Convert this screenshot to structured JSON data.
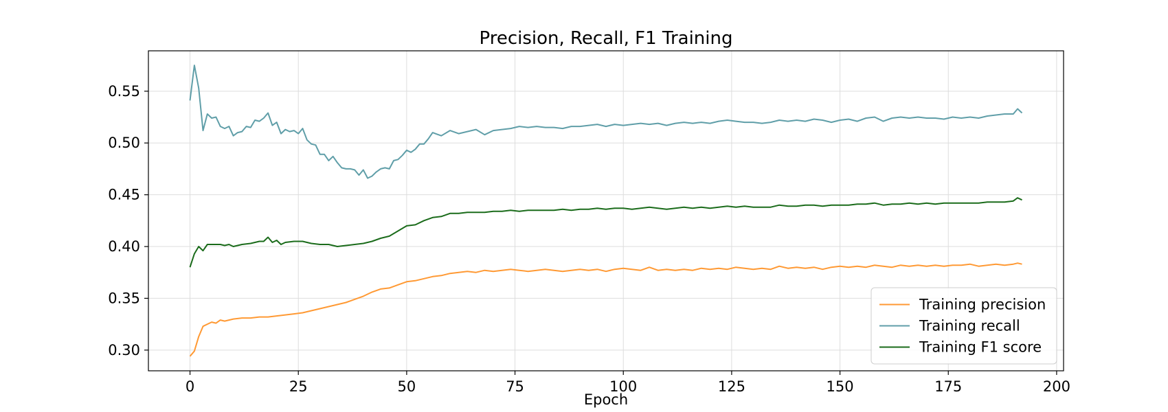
{
  "chart_data": {
    "type": "line",
    "title": "Precision, Recall, F1 Training",
    "xlabel": "Epoch",
    "ylabel": "",
    "xlim": [
      -9.6,
      201.6
    ],
    "ylim": [
      0.28,
      0.589
    ],
    "xticks": [
      0,
      25,
      50,
      75,
      100,
      125,
      150,
      175,
      200
    ],
    "yticks": [
      0.3,
      0.35,
      0.4,
      0.45,
      0.5,
      0.55
    ],
    "xtick_labels": [
      "0",
      "25",
      "50",
      "75",
      "100",
      "125",
      "150",
      "175",
      "200"
    ],
    "ytick_labels": [
      "0.30",
      "0.35",
      "0.40",
      "0.45",
      "0.50",
      "0.55"
    ],
    "grid": true,
    "legend": "lower-right",
    "series": [
      {
        "name": "Training precision",
        "color": "#ff9933",
        "x": [
          0,
          1,
          2,
          3,
          4,
          5,
          6,
          7,
          8,
          9,
          10,
          12,
          14,
          16,
          18,
          20,
          22,
          24,
          26,
          28,
          30,
          32,
          34,
          36,
          38,
          40,
          42,
          44,
          46,
          48,
          50,
          52,
          54,
          56,
          58,
          60,
          62,
          64,
          66,
          68,
          70,
          72,
          74,
          76,
          78,
          80,
          82,
          84,
          86,
          88,
          90,
          92,
          94,
          96,
          98,
          100,
          102,
          104,
          106,
          108,
          110,
          112,
          114,
          116,
          118,
          120,
          122,
          124,
          126,
          128,
          130,
          132,
          134,
          136,
          138,
          140,
          142,
          144,
          146,
          148,
          150,
          152,
          154,
          156,
          158,
          160,
          162,
          164,
          166,
          168,
          170,
          172,
          174,
          176,
          178,
          180,
          182,
          184,
          186,
          188,
          190,
          191,
          192
        ],
        "values": [
          0.294,
          0.299,
          0.313,
          0.323,
          0.325,
          0.327,
          0.326,
          0.329,
          0.328,
          0.329,
          0.33,
          0.331,
          0.331,
          0.332,
          0.332,
          0.333,
          0.334,
          0.335,
          0.336,
          0.338,
          0.34,
          0.342,
          0.344,
          0.346,
          0.349,
          0.352,
          0.356,
          0.359,
          0.36,
          0.363,
          0.366,
          0.367,
          0.369,
          0.371,
          0.372,
          0.374,
          0.375,
          0.376,
          0.375,
          0.377,
          0.376,
          0.377,
          0.378,
          0.377,
          0.376,
          0.377,
          0.378,
          0.377,
          0.376,
          0.377,
          0.378,
          0.377,
          0.378,
          0.376,
          0.378,
          0.379,
          0.378,
          0.377,
          0.38,
          0.377,
          0.378,
          0.377,
          0.378,
          0.377,
          0.379,
          0.378,
          0.379,
          0.378,
          0.38,
          0.379,
          0.378,
          0.379,
          0.378,
          0.381,
          0.379,
          0.38,
          0.379,
          0.38,
          0.378,
          0.38,
          0.381,
          0.38,
          0.381,
          0.38,
          0.382,
          0.381,
          0.38,
          0.382,
          0.381,
          0.382,
          0.381,
          0.382,
          0.381,
          0.382,
          0.382,
          0.383,
          0.381,
          0.382,
          0.383,
          0.382,
          0.383,
          0.384,
          0.383
        ]
      },
      {
        "name": "Training recall",
        "color": "#5f9ea8",
        "x": [
          0,
          1,
          2,
          3,
          4,
          5,
          6,
          7,
          8,
          9,
          10,
          11,
          12,
          13,
          14,
          15,
          16,
          17,
          18,
          19,
          20,
          21,
          22,
          23,
          24,
          25,
          26,
          27,
          28,
          29,
          30,
          31,
          32,
          33,
          34,
          35,
          36,
          37,
          38,
          39,
          40,
          41,
          42,
          43,
          44,
          45,
          46,
          47,
          48,
          49,
          50,
          51,
          52,
          53,
          54,
          55,
          56,
          58,
          60,
          62,
          64,
          66,
          68,
          70,
          72,
          74,
          76,
          78,
          80,
          82,
          84,
          86,
          88,
          90,
          92,
          94,
          96,
          98,
          100,
          102,
          104,
          106,
          108,
          110,
          112,
          114,
          116,
          118,
          120,
          122,
          124,
          126,
          128,
          130,
          132,
          134,
          136,
          138,
          140,
          142,
          144,
          146,
          148,
          150,
          152,
          154,
          156,
          158,
          160,
          162,
          164,
          166,
          168,
          170,
          172,
          174,
          176,
          178,
          180,
          182,
          184,
          186,
          188,
          190,
          191,
          192
        ],
        "values": [
          0.541,
          0.575,
          0.553,
          0.512,
          0.528,
          0.524,
          0.525,
          0.516,
          0.514,
          0.516,
          0.507,
          0.51,
          0.511,
          0.516,
          0.515,
          0.522,
          0.521,
          0.524,
          0.529,
          0.517,
          0.52,
          0.509,
          0.513,
          0.511,
          0.512,
          0.509,
          0.514,
          0.503,
          0.499,
          0.498,
          0.489,
          0.489,
          0.483,
          0.487,
          0.481,
          0.476,
          0.475,
          0.475,
          0.474,
          0.469,
          0.474,
          0.466,
          0.468,
          0.472,
          0.475,
          0.476,
          0.475,
          0.483,
          0.484,
          0.488,
          0.493,
          0.491,
          0.494,
          0.499,
          0.499,
          0.504,
          0.51,
          0.507,
          0.512,
          0.509,
          0.511,
          0.513,
          0.508,
          0.512,
          0.513,
          0.514,
          0.516,
          0.515,
          0.516,
          0.515,
          0.515,
          0.514,
          0.516,
          0.516,
          0.517,
          0.518,
          0.516,
          0.518,
          0.517,
          0.518,
          0.519,
          0.518,
          0.519,
          0.517,
          0.519,
          0.52,
          0.519,
          0.52,
          0.519,
          0.521,
          0.522,
          0.521,
          0.52,
          0.52,
          0.519,
          0.52,
          0.522,
          0.521,
          0.522,
          0.521,
          0.523,
          0.522,
          0.52,
          0.522,
          0.523,
          0.521,
          0.524,
          0.525,
          0.521,
          0.524,
          0.525,
          0.524,
          0.525,
          0.524,
          0.524,
          0.523,
          0.525,
          0.524,
          0.525,
          0.524,
          0.526,
          0.527,
          0.528,
          0.528,
          0.533,
          0.529
        ]
      },
      {
        "name": "Training F1 score",
        "color": "#1a6b1a",
        "x": [
          0,
          1,
          2,
          3,
          4,
          5,
          6,
          7,
          8,
          9,
          10,
          12,
          14,
          16,
          17,
          18,
          19,
          20,
          21,
          22,
          24,
          26,
          28,
          30,
          32,
          34,
          36,
          38,
          40,
          42,
          44,
          46,
          48,
          50,
          52,
          54,
          56,
          58,
          60,
          62,
          64,
          66,
          68,
          70,
          72,
          74,
          76,
          78,
          80,
          82,
          84,
          86,
          88,
          90,
          92,
          94,
          96,
          98,
          100,
          102,
          104,
          106,
          108,
          110,
          112,
          114,
          116,
          118,
          120,
          122,
          124,
          126,
          128,
          130,
          132,
          134,
          136,
          138,
          140,
          142,
          144,
          146,
          148,
          150,
          152,
          154,
          156,
          158,
          160,
          162,
          164,
          166,
          168,
          170,
          172,
          174,
          176,
          178,
          180,
          182,
          184,
          186,
          188,
          190,
          191,
          192
        ],
        "values": [
          0.38,
          0.393,
          0.4,
          0.396,
          0.402,
          0.402,
          0.402,
          0.402,
          0.401,
          0.402,
          0.4,
          0.402,
          0.403,
          0.405,
          0.405,
          0.409,
          0.404,
          0.406,
          0.402,
          0.404,
          0.405,
          0.405,
          0.403,
          0.402,
          0.402,
          0.4,
          0.401,
          0.402,
          0.403,
          0.405,
          0.408,
          0.41,
          0.415,
          0.42,
          0.421,
          0.425,
          0.428,
          0.429,
          0.432,
          0.432,
          0.433,
          0.433,
          0.433,
          0.434,
          0.434,
          0.435,
          0.434,
          0.435,
          0.435,
          0.435,
          0.435,
          0.436,
          0.435,
          0.436,
          0.436,
          0.437,
          0.436,
          0.437,
          0.437,
          0.436,
          0.437,
          0.438,
          0.437,
          0.436,
          0.437,
          0.438,
          0.437,
          0.438,
          0.437,
          0.438,
          0.439,
          0.438,
          0.439,
          0.438,
          0.438,
          0.438,
          0.44,
          0.439,
          0.439,
          0.44,
          0.44,
          0.439,
          0.44,
          0.44,
          0.44,
          0.441,
          0.441,
          0.442,
          0.44,
          0.441,
          0.441,
          0.442,
          0.441,
          0.442,
          0.441,
          0.442,
          0.442,
          0.442,
          0.442,
          0.442,
          0.443,
          0.443,
          0.443,
          0.444,
          0.447,
          0.445
        ]
      }
    ]
  }
}
